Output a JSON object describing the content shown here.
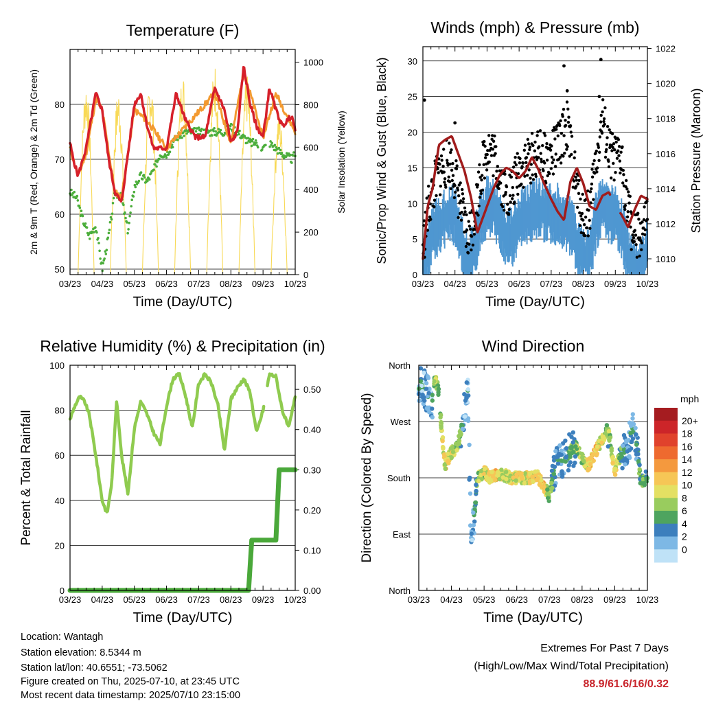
{
  "chart_data": [
    {
      "type": "line",
      "title": "Temperature (F)",
      "xlabel": "Time (Day/UTC)",
      "ylabel": "2m & 9m T (Red, Orange) & 2m Td (Green)",
      "y2label": "Solar Insolation (Yellow)",
      "x_ticks": [
        "03/23",
        "04/23",
        "05/23",
        "06/23",
        "07/23",
        "08/23",
        "09/23",
        "10/23"
      ],
      "ylim": [
        49,
        90
      ],
      "y_ticks": [
        "50",
        "60",
        "70",
        "80"
      ],
      "y2lim": [
        0,
        1060
      ],
      "y2_ticks": [
        "0",
        "200",
        "400",
        "600",
        "800",
        "1000"
      ],
      "series": [
        {
          "name": "2m T",
          "color": "#d6202a",
          "x": [
            0,
            0.1,
            0.25,
            0.5,
            0.8,
            1,
            1.2,
            1.4,
            1.6,
            1.8,
            2,
            2.2,
            2.4,
            2.6,
            2.8,
            3,
            3.3,
            3.6,
            3.9,
            4.2,
            4.5,
            4.8,
            5,
            5.2,
            5.4,
            5.6,
            5.8,
            6,
            6.2,
            6.4,
            6.6,
            6.9,
            7
          ],
          "values": [
            73,
            70,
            67,
            72,
            82,
            79,
            70,
            64,
            62,
            71,
            80,
            82,
            76,
            72,
            72,
            72,
            82,
            77,
            74,
            74,
            83,
            79,
            73,
            75,
            87,
            80,
            76,
            74,
            83,
            79,
            76,
            78,
            75
          ]
        },
        {
          "name": "9m T",
          "color": "#f39a30",
          "x": [
            0,
            0.25,
            0.5,
            0.8,
            1,
            1.4,
            1.6,
            2,
            2.4,
            3,
            3.6,
            4.5,
            5,
            5.4,
            6,
            6.4,
            7
          ],
          "values": [
            72,
            67,
            71,
            81,
            79,
            64,
            63,
            79,
            77,
            72,
            76,
            82,
            73,
            86,
            74,
            82,
            75
          ]
        },
        {
          "name": "2m Td",
          "color": "#4cae3c",
          "x": [
            0,
            0.2,
            0.4,
            0.6,
            0.8,
            1,
            1.2,
            1.4,
            1.6,
            1.8,
            2,
            2.2,
            2.4,
            2.6,
            2.8,
            3,
            3.3,
            3.6,
            3.9,
            4.2,
            4.5,
            4.8,
            5,
            5.2,
            5.4,
            5.6,
            5.8,
            6,
            6.2,
            6.4,
            6.6,
            6.9,
            7
          ],
          "values": [
            64,
            63,
            59,
            56,
            58,
            50,
            56,
            64,
            63,
            57,
            65,
            67,
            66,
            68,
            71,
            71,
            74,
            75,
            75,
            75,
            75,
            75,
            76,
            75,
            74,
            73,
            73,
            72,
            73,
            72,
            71,
            70,
            71
          ]
        },
        {
          "name": "Solar Insolation",
          "color": "#f8d956",
          "axis": "y2",
          "peaks_x": [
            0.5,
            1.5,
            2.5,
            3.5,
            4.5,
            5.5,
            6.5
          ],
          "peaks": [
            920,
            880,
            940,
            960,
            1000,
            940,
            780
          ]
        }
      ]
    },
    {
      "type": "line",
      "title": "Winds (mph) & Pressure (mb)",
      "xlabel": "Time (Day/UTC)",
      "ylabel": "Sonic/Prop Wind & Gust (Blue, Black)",
      "y2label": "Station Pressure (Maroon)",
      "x_ticks": [
        "03/23",
        "04/23",
        "05/23",
        "06/23",
        "07/23",
        "08/23",
        "09/23",
        "10/23"
      ],
      "ylim": [
        0,
        32
      ],
      "y_ticks": [
        "0",
        "5",
        "10",
        "15",
        "20",
        "25",
        "30"
      ],
      "y2lim": [
        1009.1,
        1022.1
      ],
      "y2_ticks": [
        "1010",
        "1012",
        "1014",
        "1016",
        "1018",
        "1020",
        "1022"
      ],
      "series": [
        {
          "name": "Wind",
          "color": "#4f97d1",
          "x": [
            0,
            0.2,
            0.4,
            0.6,
            0.8,
            1,
            1.2,
            1.4,
            1.6,
            1.8,
            2,
            2.2,
            2.4,
            2.6,
            2.8,
            3,
            3.3,
            3.6,
            3.9,
            4.2,
            4.5,
            4.8,
            5,
            5.2,
            5.4,
            5.6,
            5.8,
            6,
            6.2,
            6.4,
            6.6,
            6.9,
            7
          ],
          "values": [
            2,
            6,
            8,
            9,
            10,
            10,
            6,
            3,
            5,
            9,
            11,
            11,
            9,
            7,
            7,
            9,
            10,
            11,
            10,
            10,
            9,
            6,
            4,
            4,
            9,
            11,
            10,
            10,
            8,
            4,
            2,
            3,
            6
          ]
        },
        {
          "name": "Gust",
          "color": "#000000",
          "x": [
            0,
            0.2,
            0.4,
            0.6,
            0.8,
            1,
            1.2,
            1.4,
            1.6,
            1.8,
            2,
            2.2,
            2.4,
            2.6,
            2.8,
            3,
            3.3,
            3.6,
            3.9,
            4.2,
            4.5,
            4.8,
            5,
            5.2,
            5.4,
            5.6,
            5.8,
            6,
            6.2,
            6.4,
            6.6,
            6.9,
            7
          ],
          "values": [
            4,
            10,
            13,
            15,
            16,
            14,
            9,
            5,
            8,
            14,
            18,
            17,
            14,
            11,
            12,
            15,
            16,
            17,
            16,
            18,
            21,
            12,
            8,
            9,
            16,
            22,
            17,
            16,
            16,
            9,
            5,
            6,
            9
          ]
        },
        {
          "name": "Pressure",
          "color": "#a11c1c",
          "axis": "y2",
          "x": [
            0,
            0.15,
            0.3,
            0.5,
            0.7,
            0.9,
            1,
            1.1,
            1.3,
            1.5,
            1.7,
            1.8,
            2,
            2.2,
            2.4,
            2.6,
            2.8,
            3,
            3.2,
            3.4,
            3.6,
            3.8,
            4,
            4.2,
            4.4,
            4.6,
            4.8,
            5,
            5.2,
            5.4,
            5.6,
            5.8,
            6,
            6.2,
            6.4,
            6.6,
            6.8,
            7
          ],
          "values": [
            1010,
            1013,
            1014,
            1016.5,
            1016.8,
            1017,
            1016.5,
            1016,
            1015,
            1013.5,
            1011.5,
            1012,
            1013,
            1014,
            1014.8,
            1015.2,
            1015,
            1014.6,
            1015,
            1015.8,
            1015.1,
            1014.2,
            1013.4,
            1012.7,
            1012.2,
            1014.4,
            1015.2,
            1014.3,
            1013,
            1012.8,
            1013.6,
            1013.8,
            1013,
            1012.5,
            1011.8,
            1012.8,
            1013.6,
            1013.4
          ]
        }
      ]
    },
    {
      "type": "line",
      "title": "Relative Humidity (%) & Precipitation (in)",
      "xlabel": "Time (Day/UTC)",
      "ylabel": "Percent & Total Rainfall",
      "x_ticks": [
        "03/23",
        "04/23",
        "05/23",
        "06/23",
        "07/23",
        "08/23",
        "09/23",
        "10/23"
      ],
      "ylim": [
        0,
        100
      ],
      "y_ticks": [
        "0",
        "20",
        "40",
        "60",
        "80",
        "100"
      ],
      "y2lim": [
        0,
        0.56
      ],
      "y2_ticks": [
        "0.00",
        "0.10",
        "0.20",
        "0.30",
        "0.40",
        "0.50"
      ],
      "series": [
        {
          "name": "Relative Humidity",
          "color": "#8fcb4f",
          "x": [
            0,
            0.15,
            0.3,
            0.45,
            0.6,
            0.8,
            1,
            1.15,
            1.3,
            1.45,
            1.6,
            1.8,
            2,
            2.2,
            2.4,
            2.6,
            2.8,
            3,
            3.2,
            3.4,
            3.6,
            3.8,
            4,
            4.2,
            4.4,
            4.6,
            4.8,
            5,
            5.2,
            5.4,
            5.6,
            5.8,
            6,
            6.2,
            6.4,
            6.6,
            6.8,
            7
          ],
          "values": [
            76,
            82,
            86,
            84,
            78,
            60,
            40,
            34,
            48,
            85,
            60,
            43,
            72,
            84,
            78,
            70,
            65,
            82,
            94,
            96,
            86,
            72,
            92,
            96,
            92,
            82,
            62,
            85,
            90,
            94,
            88,
            70,
            80,
            96,
            95,
            80,
            72,
            86
          ]
        },
        {
          "name": "Total Precipitation",
          "color": "#4aa83a",
          "axis": "y2",
          "x": [
            0,
            5.55,
            5.65,
            6.4,
            6.5,
            7
          ],
          "values": [
            0,
            0,
            0.125,
            0.125,
            0.3,
            0.3
          ]
        }
      ]
    },
    {
      "type": "scatter",
      "title": "Wind Direction",
      "xlabel": "Time (Day/UTC)",
      "ylabel": "Direction (Colored By Speed)",
      "x_ticks": [
        "03/23",
        "04/23",
        "05/23",
        "06/23",
        "07/23",
        "08/23",
        "09/23",
        "10/23"
      ],
      "y_ticks": [
        "North",
        "East",
        "South",
        "West",
        "North"
      ],
      "ylim": [
        0,
        360
      ],
      "colorbar": {
        "unit": "mph",
        "labels": [
          "20+",
          "18",
          "16",
          "14",
          "12",
          "10",
          "8",
          "6",
          "4",
          "2",
          "0"
        ],
        "colors": [
          "#a51c20",
          "#cc2529",
          "#e0422c",
          "#ee6a2f",
          "#f4993e",
          "#f6c656",
          "#e4e063",
          "#99cc5e",
          "#4ea45f",
          "#3c7fbd",
          "#7db8e5",
          "#bfe2f7"
        ]
      },
      "x": [
        0.1,
        0.2,
        0.3,
        0.4,
        0.5,
        0.6,
        0.8,
        1.0,
        1.2,
        1.4,
        1.5,
        1.6,
        1.8,
        2.0,
        2.2,
        2.4,
        2.6,
        2.8,
        3.0,
        3.2,
        3.4,
        3.6,
        3.8,
        4.0,
        4.2,
        4.4,
        4.6,
        4.8,
        5.0,
        5.2,
        5.4,
        5.6,
        5.8,
        6.0,
        6.2,
        6.4,
        6.6,
        6.8,
        7.0
      ],
      "y": [
        330,
        320,
        310,
        300,
        340,
        320,
        200,
        220,
        230,
        290,
        330,
        60,
        180,
        190,
        180,
        185,
        185,
        180,
        180,
        180,
        180,
        185,
        170,
        150,
        200,
        210,
        220,
        230,
        210,
        200,
        220,
        240,
        260,
        190,
        220,
        230,
        260,
        170,
        180
      ],
      "speed": [
        4,
        4,
        4,
        4,
        10,
        8,
        12,
        10,
        10,
        3,
        4,
        2,
        8,
        10,
        12,
        12,
        10,
        11,
        12,
        12,
        11,
        12,
        13,
        9,
        5,
        4,
        6,
        8,
        10,
        12,
        14,
        10,
        8,
        12,
        6,
        4,
        4,
        8,
        6
      ]
    }
  ],
  "footer": {
    "location": "Location: Wantagh",
    "elevation": "Station elevation: 8.5344 m",
    "latlon": "Station lat/lon: 40.6551; -73.5062",
    "created": "Figure created on Thu, 2025-07-10, at 23:45 UTC",
    "recent": "Most recent data timestamp: 2025/07/10 23:15:00"
  },
  "extremes": {
    "title": "Extremes For Past 7 Days",
    "subtitle": "(High/Low/Max Wind/Total Precipitation)",
    "values": "88.9/61.6/16/0.32"
  }
}
